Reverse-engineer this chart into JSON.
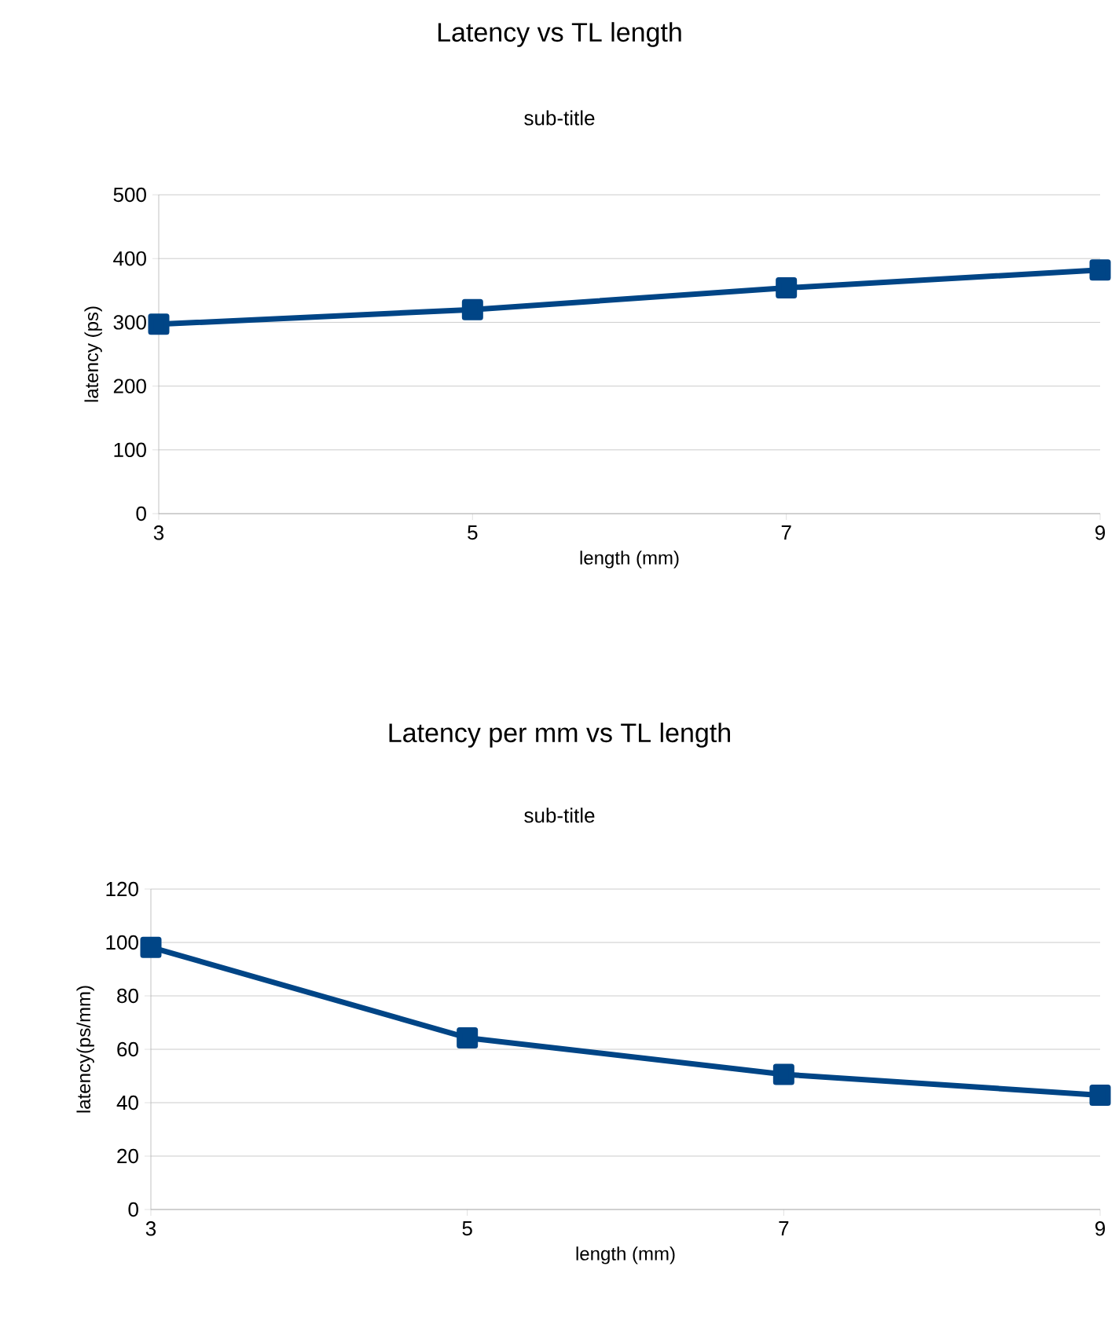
{
  "chart_data": [
    {
      "type": "line",
      "title": "Latency vs TL length",
      "subtitle": "sub-title",
      "xlabel": "length (mm)",
      "ylabel": "latency (ps)",
      "x": [
        3,
        5,
        7,
        9
      ],
      "series": [
        {
          "color": "#004586",
          "values": [
            297,
            320,
            354,
            382
          ]
        }
      ],
      "xlim": [
        3,
        9
      ],
      "ylim": [
        0,
        500
      ],
      "xticks": [
        3,
        5,
        7,
        9
      ],
      "yticks": [
        0,
        100,
        200,
        300,
        400,
        500
      ],
      "grid": "y",
      "marker": "square",
      "line_style": "solid"
    },
    {
      "type": "line",
      "title": "Latency per mm vs TL length",
      "subtitle": "sub-title",
      "xlabel": "length (mm)",
      "ylabel": "latency(ps/mm)",
      "x": [
        3,
        5,
        7,
        9
      ],
      "series": [
        {
          "color": "#004586",
          "values": [
            98.2,
            64.3,
            50.6,
            42.8
          ]
        }
      ],
      "xlim": [
        3,
        9
      ],
      "ylim": [
        0,
        120
      ],
      "xticks": [
        3,
        5,
        7,
        9
      ],
      "yticks": [
        0,
        20,
        40,
        60,
        80,
        100,
        120
      ],
      "grid": "y",
      "marker": "square",
      "line_style": "solid"
    }
  ]
}
